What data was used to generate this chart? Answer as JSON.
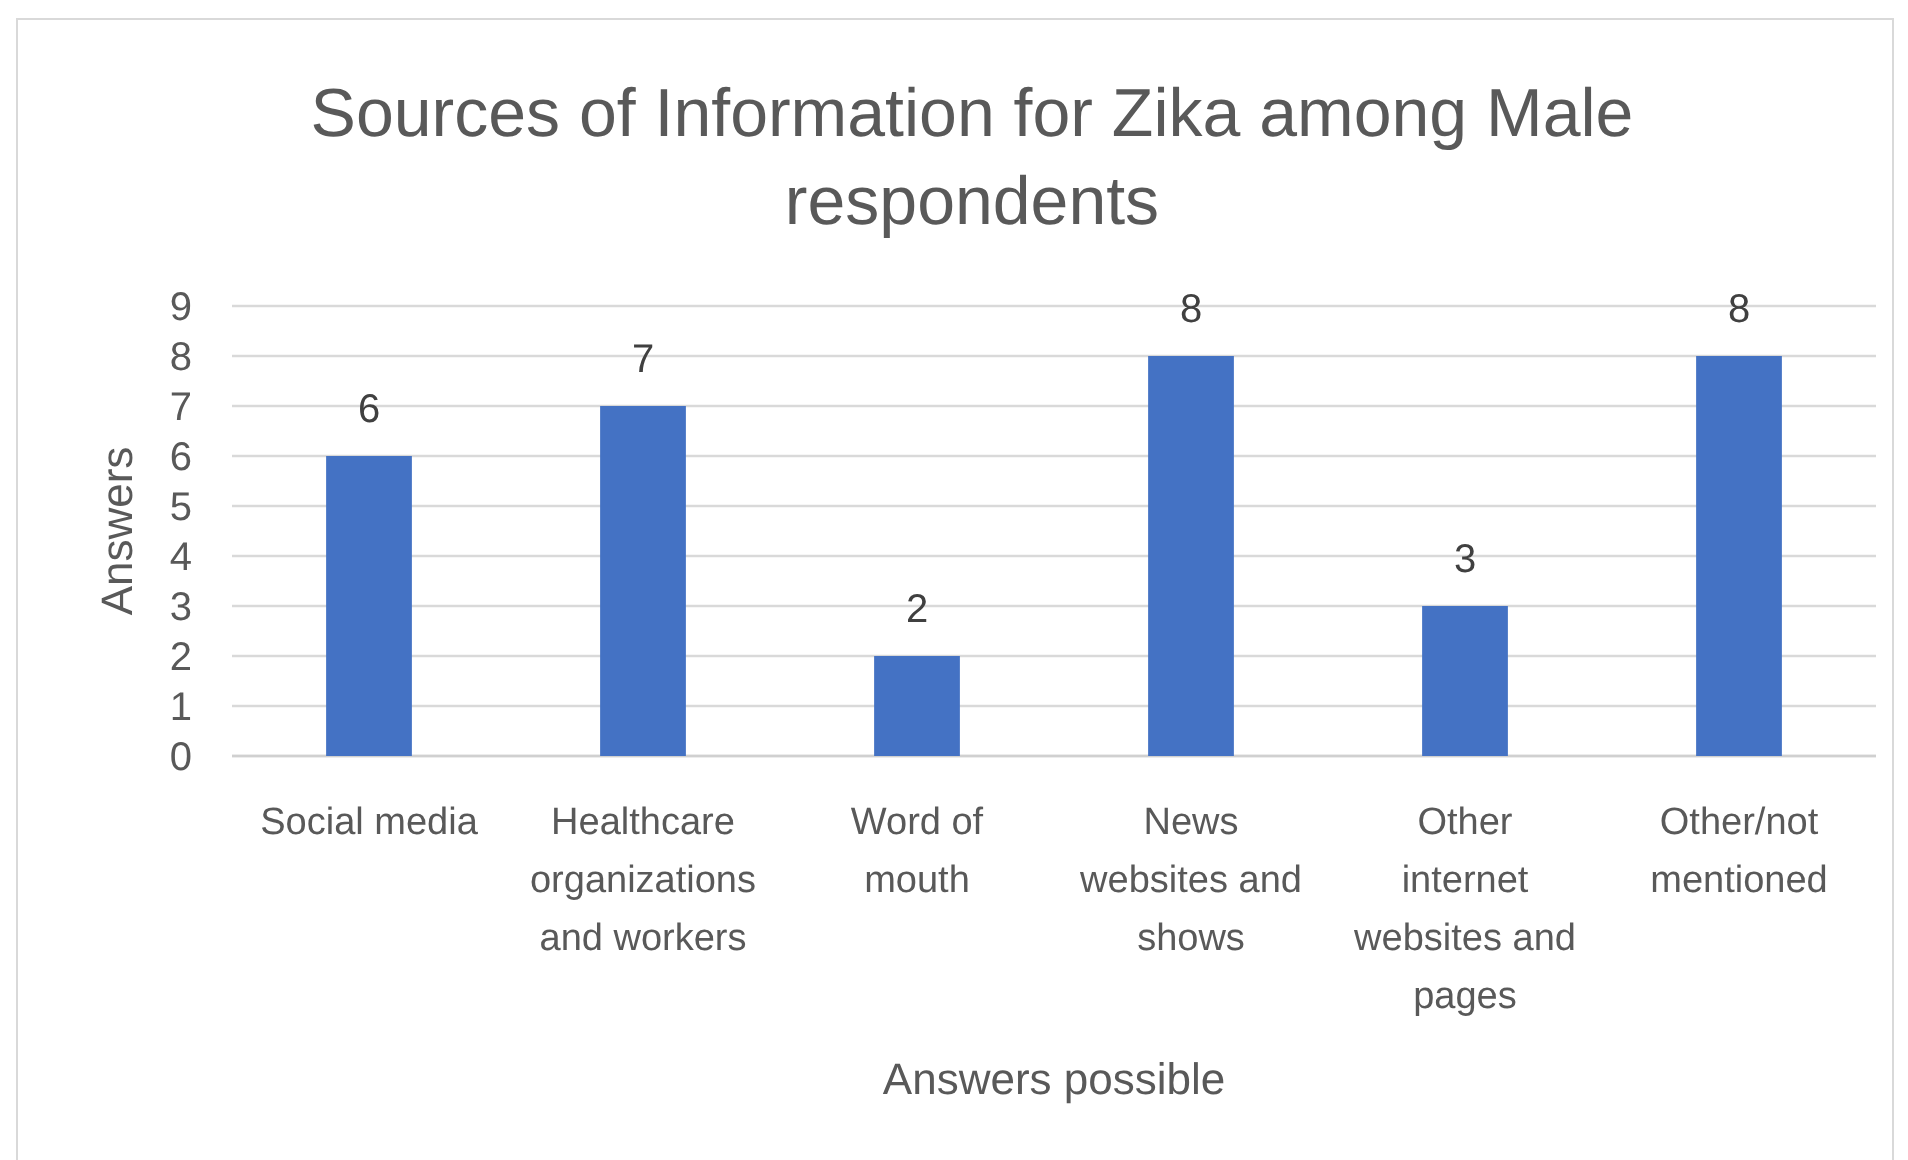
{
  "chart_data": {
    "type": "bar",
    "title": "Sources of Information for Zika among Male respondents",
    "xlabel": "Answers possible",
    "ylabel": "Answers",
    "categories": [
      "Social media",
      "Healthcare organizations and workers",
      "Word of mouth",
      "News websites and shows",
      "Other internet websites and pages",
      "Other/not mentioned"
    ],
    "values": [
      6,
      7,
      2,
      8,
      3,
      8
    ],
    "color": "#4472c4",
    "ylim": [
      0,
      9
    ],
    "yticks": [
      0,
      1,
      2,
      3,
      4,
      5,
      6,
      7,
      8,
      9
    ],
    "grid": "y",
    "data_labels": true
  }
}
